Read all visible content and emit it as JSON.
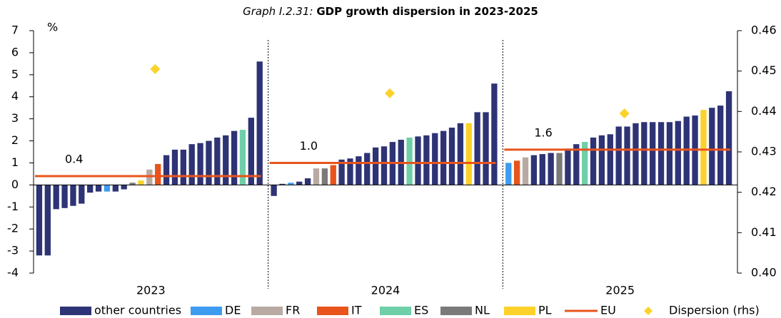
{
  "chart_data": {
    "type": "bar",
    "title_prefix": "Graph I.2.31:",
    "title": "GDP growth dispersion in 2023-2025",
    "y_unit": "%",
    "ylim": [
      -4,
      7
    ],
    "yticks": [
      -4,
      -3,
      -2,
      -1,
      0,
      1,
      2,
      3,
      4,
      5,
      6,
      7
    ],
    "y2lim": [
      0.4,
      0.46
    ],
    "y2ticks": [
      {
        "value": 0.4,
        "label": "0.40"
      },
      {
        "value": 0.41,
        "label": "0.41"
      },
      {
        "value": 0.42,
        "label": "0.42"
      },
      {
        "value": 0.43,
        "label": "0.43"
      },
      {
        "value": 0.44,
        "label": "0.44"
      },
      {
        "value": 0.45,
        "label": "0.45"
      },
      {
        "value": 0.46,
        "label": "0.46"
      }
    ],
    "legend": [
      {
        "name": "other countries",
        "color": "#2e3375",
        "kind": "bar"
      },
      {
        "name": "DE",
        "color": "#3d9bf0",
        "kind": "bar"
      },
      {
        "name": "FR",
        "color": "#b8aaa2",
        "kind": "bar"
      },
      {
        "name": "IT",
        "color": "#e8541c",
        "kind": "bar"
      },
      {
        "name": "ES",
        "color": "#6fcfa8",
        "kind": "bar"
      },
      {
        "name": "NL",
        "color": "#7a7a7a",
        "kind": "bar"
      },
      {
        "name": "PL",
        "color": "#fcd22a",
        "kind": "bar"
      },
      {
        "name": "EU",
        "color": "#e8541c",
        "kind": "line"
      },
      {
        "name": "Dispersion (rhs)",
        "color": "#fcd22a",
        "kind": "diamond"
      }
    ],
    "groups": [
      {
        "label": "2023",
        "values": [
          -3.2,
          -3.2,
          -1.1,
          -1.05,
          -0.95,
          -0.85,
          -0.35,
          -0.3,
          -0.3,
          -0.3,
          -0.2,
          0.1,
          0.2,
          0.7,
          0.95,
          1.35,
          1.6,
          1.6,
          1.85,
          1.9,
          2.0,
          2.15,
          2.25,
          2.45,
          2.5,
          3.05,
          5.6
        ],
        "colors": [
          "#2e3375",
          "#2e3375",
          "#2e3375",
          "#2e3375",
          "#2e3375",
          "#2e3375",
          "#2e3375",
          "#2e3375",
          "#3d9bf0",
          "#2e3375",
          "#2e3375",
          "#7a7a7a",
          "#fcd22a",
          "#b8aaa2",
          "#e8541c",
          "#2e3375",
          "#2e3375",
          "#2e3375",
          "#2e3375",
          "#2e3375",
          "#2e3375",
          "#2e3375",
          "#2e3375",
          "#2e3375",
          "#6fcfa8",
          "#2e3375",
          "#2e3375"
        ]
      },
      {
        "label": "2024",
        "values": [
          -0.5,
          0.05,
          0.1,
          0.15,
          0.3,
          0.75,
          0.75,
          0.9,
          1.15,
          1.2,
          1.3,
          1.45,
          1.7,
          1.75,
          1.95,
          2.05,
          2.15,
          2.2,
          2.25,
          2.35,
          2.45,
          2.6,
          2.8,
          2.8,
          3.3,
          3.3,
          4.6
        ],
        "colors": [
          "#2e3375",
          "#2e3375",
          "#3d9bf0",
          "#2e3375",
          "#2e3375",
          "#b8aaa2",
          "#7a7a7a",
          "#e8541c",
          "#2e3375",
          "#2e3375",
          "#2e3375",
          "#2e3375",
          "#2e3375",
          "#2e3375",
          "#2e3375",
          "#2e3375",
          "#6fcfa8",
          "#2e3375",
          "#2e3375",
          "#2e3375",
          "#2e3375",
          "#2e3375",
          "#2e3375",
          "#fcd22a",
          "#2e3375",
          "#2e3375",
          "#2e3375"
        ]
      },
      {
        "label": "2025",
        "values": [
          1.0,
          1.1,
          1.25,
          1.35,
          1.4,
          1.45,
          1.45,
          1.65,
          1.85,
          1.95,
          2.15,
          2.25,
          2.3,
          2.65,
          2.65,
          2.8,
          2.85,
          2.85,
          2.85,
          2.85,
          2.9,
          3.1,
          3.15,
          3.4,
          3.5,
          3.6,
          4.25
        ],
        "colors": [
          "#3d9bf0",
          "#e8541c",
          "#b8aaa2",
          "#2e3375",
          "#2e3375",
          "#2e3375",
          "#7a7a7a",
          "#2e3375",
          "#2e3375",
          "#6fcfa8",
          "#2e3375",
          "#2e3375",
          "#2e3375",
          "#2e3375",
          "#2e3375",
          "#2e3375",
          "#2e3375",
          "#2e3375",
          "#2e3375",
          "#2e3375",
          "#2e3375",
          "#2e3375",
          "#2e3375",
          "#fcd22a",
          "#2e3375",
          "#2e3375",
          "#2e3375"
        ]
      }
    ],
    "eu": {
      "name": "EU",
      "color": "#e8541c",
      "values": [
        0.4,
        1.0,
        1.6
      ],
      "value_labels": [
        "0.4",
        "1.0",
        "1.6"
      ]
    },
    "dispersion": {
      "name": "Dispersion (rhs)",
      "color": "#fcd22a",
      "axis": "y2",
      "values": [
        0.4505,
        0.4445,
        0.4395
      ]
    }
  }
}
